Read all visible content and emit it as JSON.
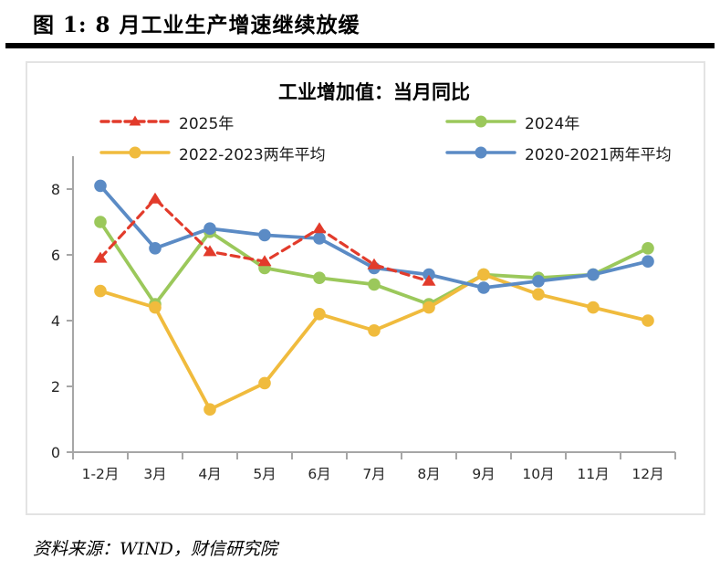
{
  "figure": {
    "title": "图 1: 8 月工业生产增速继续放缓",
    "source": "资料来源：WIND，财信研究院"
  },
  "chart_data": {
    "type": "line",
    "title": "工业增加值：当月同比",
    "categories": [
      "1-2月",
      "3月",
      "4月",
      "5月",
      "6月",
      "7月",
      "8月",
      "9月",
      "10月",
      "11月",
      "12月"
    ],
    "series": [
      {
        "name": "2025年",
        "color": "#e23b2b",
        "marker": "triangle",
        "dashed": true,
        "values": [
          5.9,
          7.7,
          6.1,
          5.8,
          6.8,
          5.7,
          5.2,
          null,
          null,
          null,
          null
        ]
      },
      {
        "name": "2024年",
        "color": "#9bc85b",
        "marker": "circle",
        "dashed": false,
        "values": [
          7.0,
          4.5,
          6.7,
          5.6,
          5.3,
          5.1,
          4.5,
          5.4,
          5.3,
          5.4,
          6.2
        ]
      },
      {
        "name": "2022-2023两年平均",
        "color": "#f0bb3d",
        "marker": "circle",
        "dashed": false,
        "values": [
          4.9,
          4.4,
          1.3,
          2.1,
          4.2,
          3.7,
          4.4,
          5.4,
          4.8,
          4.4,
          4.0
        ]
      },
      {
        "name": "2020-2021两年平均",
        "color": "#5b8bc5",
        "marker": "circle",
        "dashed": false,
        "values": [
          8.1,
          6.2,
          6.8,
          6.6,
          6.5,
          5.6,
          5.4,
          5.0,
          5.2,
          5.4,
          5.8
        ]
      }
    ],
    "xlabel": "",
    "ylabel": "",
    "ylim": [
      0,
      9
    ],
    "yticks": [
      0,
      2,
      4,
      6,
      8
    ],
    "grid": false,
    "legend_position": "top",
    "axis_color": "#a6a6a6"
  }
}
